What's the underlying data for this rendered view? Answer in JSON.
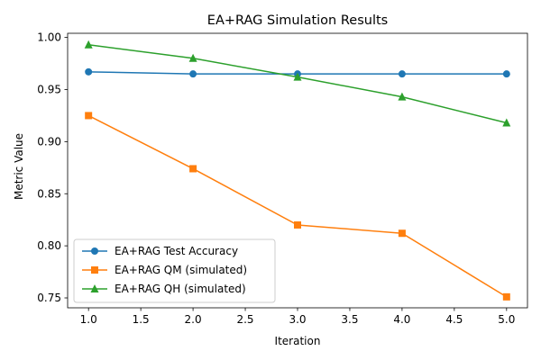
{
  "chart_data": {
    "type": "line",
    "title": "EA+RAG Simulation Results",
    "xlabel": "Iteration",
    "ylabel": "Metric Value",
    "x": [
      1.0,
      2.0,
      3.0,
      4.0,
      5.0
    ],
    "xlim": [
      0.8,
      5.2
    ],
    "ylim": [
      0.7405,
      1.004
    ],
    "xticks": [
      1.0,
      1.5,
      2.0,
      2.5,
      3.0,
      3.5,
      4.0,
      4.5,
      5.0
    ],
    "xtick_labels": [
      "1.0",
      "1.5",
      "2.0",
      "2.5",
      "3.0",
      "3.5",
      "4.0",
      "4.5",
      "5.0"
    ],
    "yticks": [
      0.75,
      0.8,
      0.85,
      0.9,
      0.95,
      1.0
    ],
    "ytick_labels": [
      "0.75",
      "0.80",
      "0.85",
      "0.90",
      "0.95",
      "1.00"
    ],
    "grid": false,
    "legend_position": "lower-left",
    "series": [
      {
        "name": "EA+RAG Test Accuracy",
        "values": [
          0.967,
          0.965,
          0.965,
          0.965,
          0.965
        ],
        "color": "#1f77b4",
        "marker": "circle"
      },
      {
        "name": "EA+RAG QM (simulated)",
        "values": [
          0.925,
          0.874,
          0.82,
          0.812,
          0.751
        ],
        "color": "#ff7f0e",
        "marker": "square"
      },
      {
        "name": "EA+RAG QH (simulated)",
        "values": [
          0.993,
          0.98,
          0.962,
          0.943,
          0.918
        ],
        "color": "#2ca02c",
        "marker": "triangle"
      }
    ]
  }
}
